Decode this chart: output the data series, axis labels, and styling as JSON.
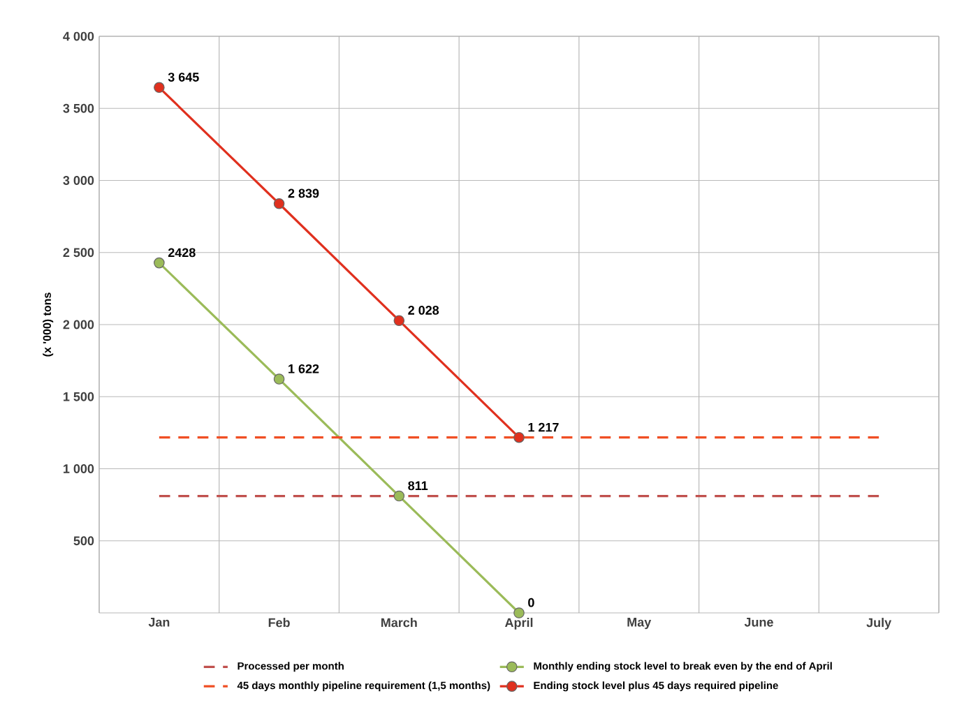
{
  "chart_data": {
    "type": "line",
    "ylabel": "(x '000)  tons",
    "categories": [
      "Jan",
      "Feb",
      "March",
      "April",
      "May",
      "June",
      "July"
    ],
    "ylim": [
      0,
      4000
    ],
    "yticks": [
      500,
      {
        "value": 1000,
        "label": "1 000"
      },
      {
        "value": 1500,
        "label": "1 500"
      },
      {
        "value": 2000,
        "label": "2 000"
      },
      {
        "value": 2500,
        "label": "2 500"
      },
      {
        "value": 3000,
        "label": "3 000"
      },
      {
        "value": 3500,
        "label": "3 500"
      },
      {
        "value": 4000,
        "label": "4 000"
      }
    ],
    "grid": true,
    "legend": "bottom",
    "series": [
      {
        "name": "Processed per month",
        "color": "#c0504d",
        "line_style": "dashed",
        "marker": "none",
        "values": [
          811,
          811,
          811,
          811,
          811,
          811,
          811
        ]
      },
      {
        "name": "45 days monthly pipeline requirement (1,5 months)",
        "color": "#f04e23",
        "line_style": "dashed",
        "marker": "none",
        "values": [
          1217,
          1217,
          1217,
          1217,
          1217,
          1217,
          1217
        ]
      },
      {
        "name": "Monthly ending stock level to break even by the end of April",
        "color": "#9bbb59",
        "line_style": "solid",
        "marker": "circle",
        "values": [
          2428,
          1622,
          811,
          0,
          null,
          null,
          null
        ],
        "value_labels": [
          "2428",
          "1 622",
          "811",
          "0",
          null,
          null,
          null
        ]
      },
      {
        "name": "Ending stock level plus 45 days required pipeline",
        "color": "#e0301e",
        "line_style": "solid",
        "marker": "circle",
        "values": [
          3645,
          2839,
          2028,
          1217,
          null,
          null,
          null
        ],
        "value_labels": [
          "3 645",
          "2 839",
          "2 028",
          "1 217",
          null,
          null,
          null
        ]
      }
    ]
  }
}
